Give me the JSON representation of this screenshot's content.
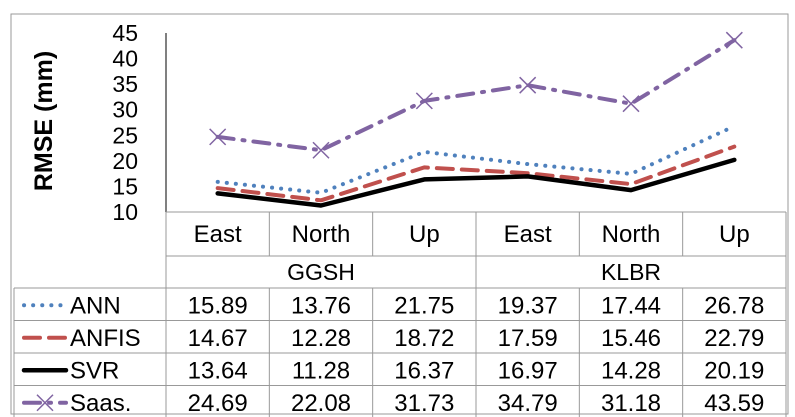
{
  "chart_data": {
    "type": "line",
    "ylabel": "RMSE (mm)",
    "ylim": [
      10,
      45
    ],
    "yticks": [
      "10",
      "15",
      "20",
      "25",
      "30",
      "35",
      "40",
      "45"
    ],
    "grid": false,
    "legend": "data-table-left",
    "categories": [
      "East",
      "North",
      "Up",
      "East",
      "North",
      "Up"
    ],
    "groups": [
      {
        "label": "GGSH",
        "span": 3
      },
      {
        "label": "KLBR",
        "span": 3
      }
    ],
    "series": [
      {
        "name": "ANN",
        "color": "#4f81bd",
        "style": "dotted",
        "values": [
          15.89,
          13.76,
          21.75,
          19.37,
          17.44,
          26.78
        ],
        "labels": [
          "15.89",
          "13.76",
          "21.75",
          "19.37",
          "17.44",
          "26.78"
        ]
      },
      {
        "name": "ANFIS",
        "color": "#c0504d",
        "style": "dashed",
        "values": [
          14.67,
          12.28,
          18.72,
          17.59,
          15.46,
          22.79
        ],
        "labels": [
          "14.67",
          "12.28",
          "18.72",
          "17.59",
          "15.46",
          "22.79"
        ]
      },
      {
        "name": "SVR",
        "color": "#000000",
        "style": "solid",
        "values": [
          13.64,
          11.28,
          16.37,
          16.97,
          14.28,
          20.19
        ],
        "labels": [
          "13.64",
          "11.28",
          "16.37",
          "16.97",
          "14.28",
          "20.19"
        ]
      },
      {
        "name": "Saas.",
        "color": "#8064a2",
        "style": "dashdot",
        "marker": "x",
        "values": [
          24.69,
          22.08,
          31.73,
          34.79,
          31.18,
          43.59
        ],
        "labels": [
          "24.69",
          "22.08",
          "31.73",
          "34.79",
          "31.18",
          "43.59"
        ]
      }
    ]
  }
}
